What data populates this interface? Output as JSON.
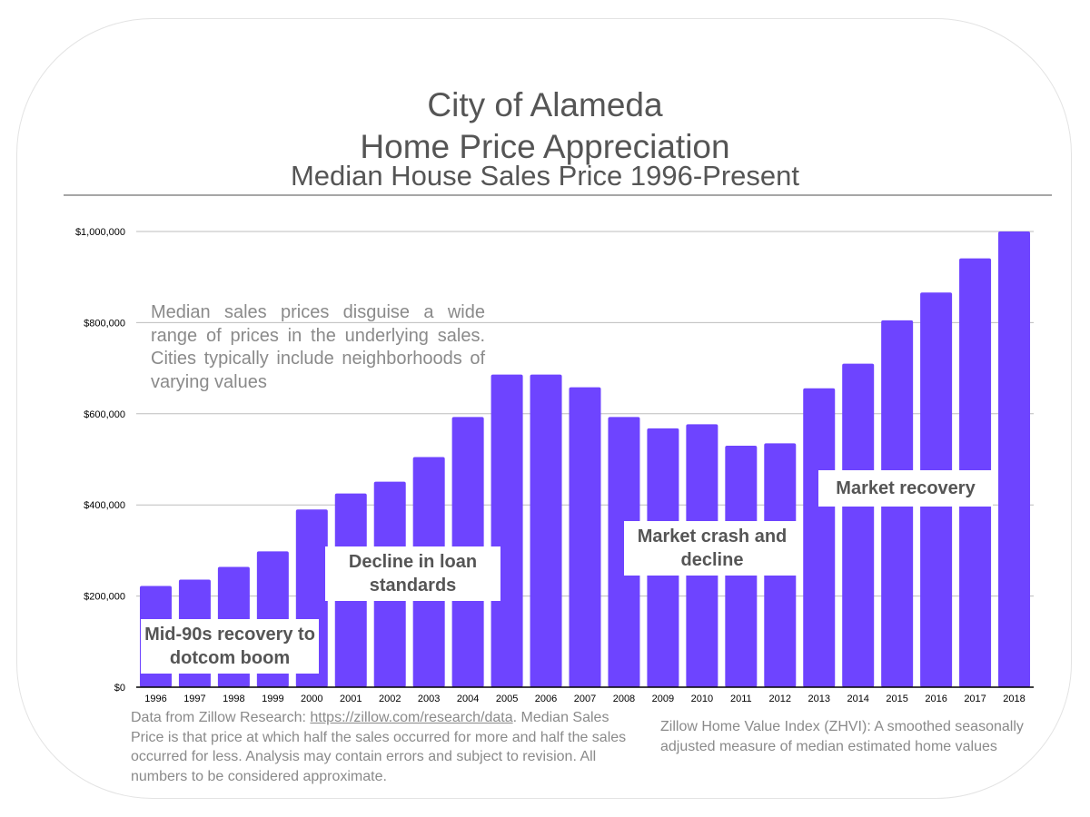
{
  "title_line1": "City of Alameda",
  "title_line2": "Home Price Appreciation",
  "title_line3": "Median House Sales Price 1996-Present",
  "note": "Median sales prices disguise a wide range of prices in the underlying sales. Cities typically include neighborhoods of varying values",
  "callouts": {
    "c1": "Mid-90s recovery to dotcom boom",
    "c2": "Decline in loan standards",
    "c3": "Market crash and decline",
    "c4": "Market recovery"
  },
  "footnote_left": {
    "prefix": "Data from Zillow Research: ",
    "link": "https://zillow.com/research/data",
    "suffix": ". Median Sales Price is that price at which half the sales occurred for more and half the sales occurred for less.  Analysis may contain errors and subject to revision.  All numbers to be considered approximate."
  },
  "footnote_right": "Zillow Home Value Index (ZHVI): A smoothed seasonally adjusted measure of median estimated home values",
  "colors": {
    "bar": "#6e44ff",
    "grid": "#bdbdbd",
    "title": "#555555",
    "note": "#8a8a8a"
  },
  "chart_data": {
    "type": "bar",
    "categories": [
      "1996",
      "1997",
      "1998",
      "1999",
      "2000",
      "2001",
      "2002",
      "2003",
      "2004",
      "2005",
      "2006",
      "2007",
      "2008",
      "2009",
      "2010",
      "2011",
      "2012",
      "2013",
      "2014",
      "2015",
      "2016",
      "2017",
      "2018"
    ],
    "values": [
      222000,
      236000,
      264000,
      298000,
      390000,
      425000,
      451000,
      505000,
      593000,
      686000,
      686000,
      658000,
      593000,
      568000,
      577000,
      530000,
      535000,
      656000,
      710000,
      805000,
      866000,
      941000,
      1000000
    ],
    "ylim": [
      0,
      1000000
    ],
    "yticks": [
      0,
      200000,
      400000,
      600000,
      800000,
      1000000
    ],
    "ytick_labels": [
      "$0",
      "$200,000",
      "$400,000",
      "$600,000",
      "$800,000",
      "$1,000,000"
    ],
    "grid": true,
    "legend": "none",
    "title": "",
    "xlabel": "",
    "ylabel": ""
  }
}
